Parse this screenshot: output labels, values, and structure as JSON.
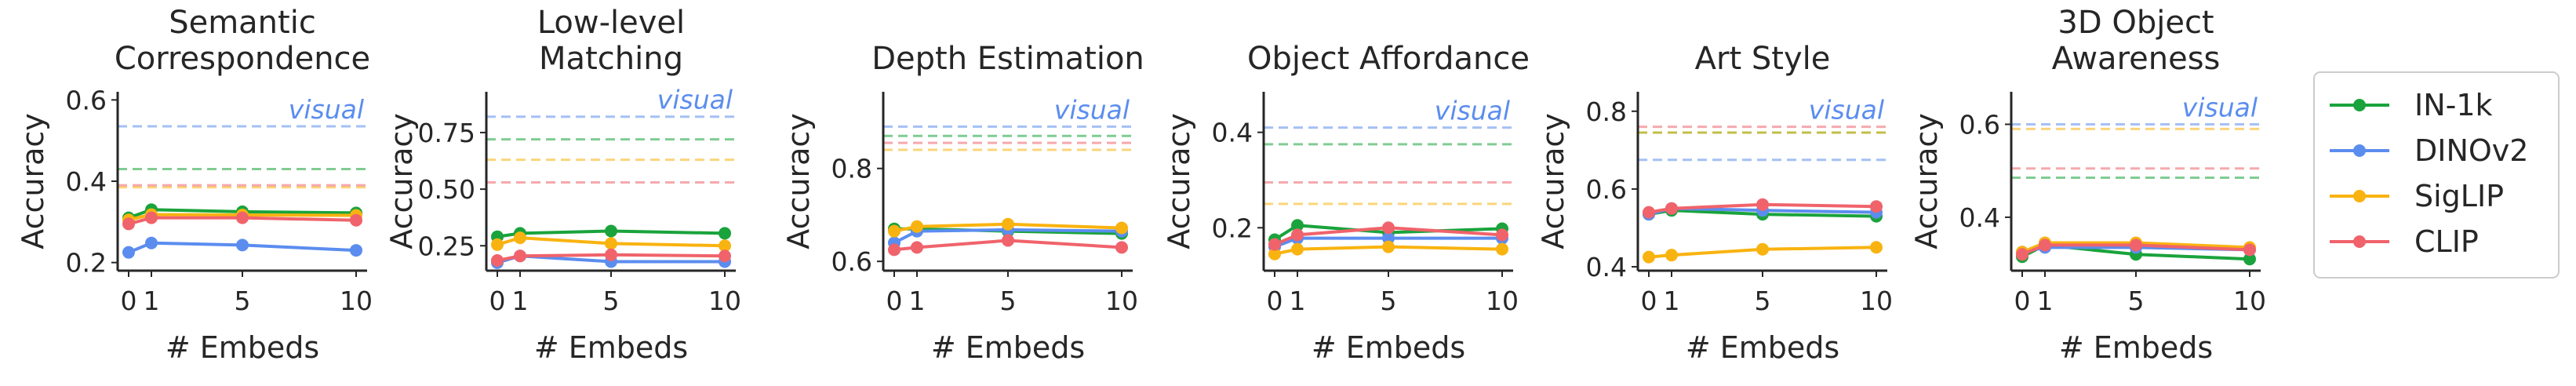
{
  "chart_data": [
    {
      "type": "line",
      "title": [
        "Semantic",
        "Correspondence"
      ],
      "xlabel": "# Embeds",
      "ylabel": "Accuracy",
      "x": [
        0,
        1,
        5,
        10
      ],
      "xticks": [
        "0",
        "1",
        "5",
        "10"
      ],
      "ylim": [
        0.18,
        0.62
      ],
      "yticks": [
        0.2,
        0.4,
        0.6
      ],
      "ytick_labels": [
        "0.2",
        "0.4",
        "0.6"
      ],
      "visual_label": "visual",
      "series": [
        {
          "name": "IN-1k",
          "values": [
            0.31,
            0.33,
            0.325,
            0.322
          ],
          "baseline": 0.43
        },
        {
          "name": "DINOv2",
          "values": [
            0.225,
            0.248,
            0.243,
            0.23
          ],
          "baseline": 0.535
        },
        {
          "name": "SigLIP",
          "values": [
            0.305,
            0.318,
            0.317,
            0.316
          ],
          "baseline": 0.385
        },
        {
          "name": "CLIP",
          "values": [
            0.295,
            0.31,
            0.31,
            0.304
          ],
          "baseline": 0.39
        }
      ]
    },
    {
      "type": "line",
      "title": [
        "Low-level",
        "Matching"
      ],
      "xlabel": "# Embeds",
      "ylabel": "Accuracy",
      "x": [
        0,
        1,
        5,
        10
      ],
      "xticks": [
        "0",
        "1",
        "5",
        "10"
      ],
      "ylim": [
        0.14,
        0.93
      ],
      "yticks": [
        0.25,
        0.5,
        0.75
      ],
      "ytick_labels": [
        "0.25",
        "0.50",
        "0.75"
      ],
      "visual_label": "visual",
      "series": [
        {
          "name": "IN-1k",
          "values": [
            0.29,
            0.305,
            0.315,
            0.305
          ],
          "baseline": 0.72
        },
        {
          "name": "DINOv2",
          "values": [
            0.175,
            0.205,
            0.18,
            0.18
          ],
          "baseline": 0.82
        },
        {
          "name": "SigLIP",
          "values": [
            0.255,
            0.285,
            0.26,
            0.25
          ],
          "baseline": 0.63
        },
        {
          "name": "CLIP",
          "values": [
            0.185,
            0.205,
            0.21,
            0.205
          ],
          "baseline": 0.53
        }
      ]
    },
    {
      "type": "line",
      "title": [
        "",
        "Depth Estimation"
      ],
      "xlabel": "# Embeds",
      "ylabel": "Accuracy",
      "x": [
        0,
        1,
        5,
        10
      ],
      "xticks": [
        "0",
        "1",
        "5",
        "10"
      ],
      "ylim": [
        0.58,
        0.965
      ],
      "yticks": [
        0.6,
        0.8
      ],
      "ytick_labels": [
        "0.6",
        "0.8"
      ],
      "visual_label": "visual",
      "series": [
        {
          "name": "IN-1k",
          "values": [
            0.67,
            0.67,
            0.665,
            0.66
          ],
          "baseline": 0.87
        },
        {
          "name": "DINOv2",
          "values": [
            0.64,
            0.665,
            0.668,
            0.665
          ],
          "baseline": 0.89
        },
        {
          "name": "SigLIP",
          "values": [
            0.665,
            0.675,
            0.68,
            0.672
          ],
          "baseline": 0.84
        },
        {
          "name": "CLIP",
          "values": [
            0.625,
            0.63,
            0.645,
            0.63
          ],
          "baseline": 0.855
        }
      ]
    },
    {
      "type": "line",
      "title": [
        "",
        "Object Affordance"
      ],
      "xlabel": "# Embeds",
      "ylabel": "Accuracy",
      "x": [
        0,
        1,
        5,
        10
      ],
      "xticks": [
        "0",
        "1",
        "5",
        "10"
      ],
      "ylim": [
        0.11,
        0.485
      ],
      "yticks": [
        0.2,
        0.4
      ],
      "ytick_labels": [
        "0.2",
        "0.4"
      ],
      "visual_label": "visual",
      "series": [
        {
          "name": "IN-1k",
          "values": [
            0.175,
            0.205,
            0.19,
            0.198
          ],
          "baseline": 0.375
        },
        {
          "name": "DINOv2",
          "values": [
            0.16,
            0.178,
            0.178,
            0.178
          ],
          "baseline": 0.41
        },
        {
          "name": "SigLIP",
          "values": [
            0.145,
            0.155,
            0.16,
            0.155
          ],
          "baseline": 0.25
        },
        {
          "name": "CLIP",
          "values": [
            0.165,
            0.185,
            0.2,
            0.185
          ],
          "baseline": 0.295
        }
      ]
    },
    {
      "type": "line",
      "title": [
        "",
        "Art Style"
      ],
      "xlabel": "# Embeds",
      "ylabel": "Accuracy",
      "x": [
        0,
        1,
        5,
        10
      ],
      "xticks": [
        "0",
        "1",
        "5",
        "10"
      ],
      "ylim": [
        0.39,
        0.85
      ],
      "yticks": [
        0.4,
        0.6,
        0.8
      ],
      "ytick_labels": [
        "0.4",
        "0.6",
        "0.8"
      ],
      "visual_label": "visual",
      "series": [
        {
          "name": "IN-1k",
          "values": [
            0.535,
            0.545,
            0.535,
            0.53
          ],
          "baseline": 0.745
        },
        {
          "name": "DINOv2",
          "values": [
            0.535,
            0.55,
            0.545,
            0.54
          ],
          "baseline": 0.675
        },
        {
          "name": "SigLIP",
          "values": [
            0.425,
            0.43,
            0.445,
            0.45
          ],
          "baseline": 0.745
        },
        {
          "name": "CLIP",
          "values": [
            0.54,
            0.55,
            0.56,
            0.555
          ],
          "baseline": 0.76
        }
      ]
    },
    {
      "type": "line",
      "title": [
        "3D Object",
        "Awareness"
      ],
      "xlabel": "# Embeds",
      "ylabel": "Accuracy",
      "x": [
        0,
        1,
        5,
        10
      ],
      "xticks": [
        "0",
        "1",
        "5",
        "10"
      ],
      "ylim": [
        0.285,
        0.67
      ],
      "yticks": [
        0.4,
        0.6
      ],
      "ytick_labels": [
        "0.4",
        "0.6"
      ],
      "visual_label": "visual",
      "series": [
        {
          "name": "IN-1k",
          "values": [
            0.315,
            0.34,
            0.32,
            0.31
          ],
          "baseline": 0.485
        },
        {
          "name": "DINOv2",
          "values": [
            0.325,
            0.335,
            0.335,
            0.33
          ],
          "baseline": 0.6
        },
        {
          "name": "SigLIP",
          "values": [
            0.325,
            0.345,
            0.345,
            0.335
          ],
          "baseline": 0.59
        },
        {
          "name": "CLIP",
          "values": [
            0.32,
            0.34,
            0.34,
            0.33
          ],
          "baseline": 0.505
        }
      ]
    }
  ],
  "legend": {
    "position": "right",
    "items": [
      {
        "name": "IN-1k",
        "color": "#1aa33c"
      },
      {
        "name": "DINOv2",
        "color": "#5b8def"
      },
      {
        "name": "SigLIP",
        "color": "#f9b310"
      },
      {
        "name": "CLIP",
        "color": "#f0636b"
      }
    ]
  },
  "visual_color": "#5b8def"
}
